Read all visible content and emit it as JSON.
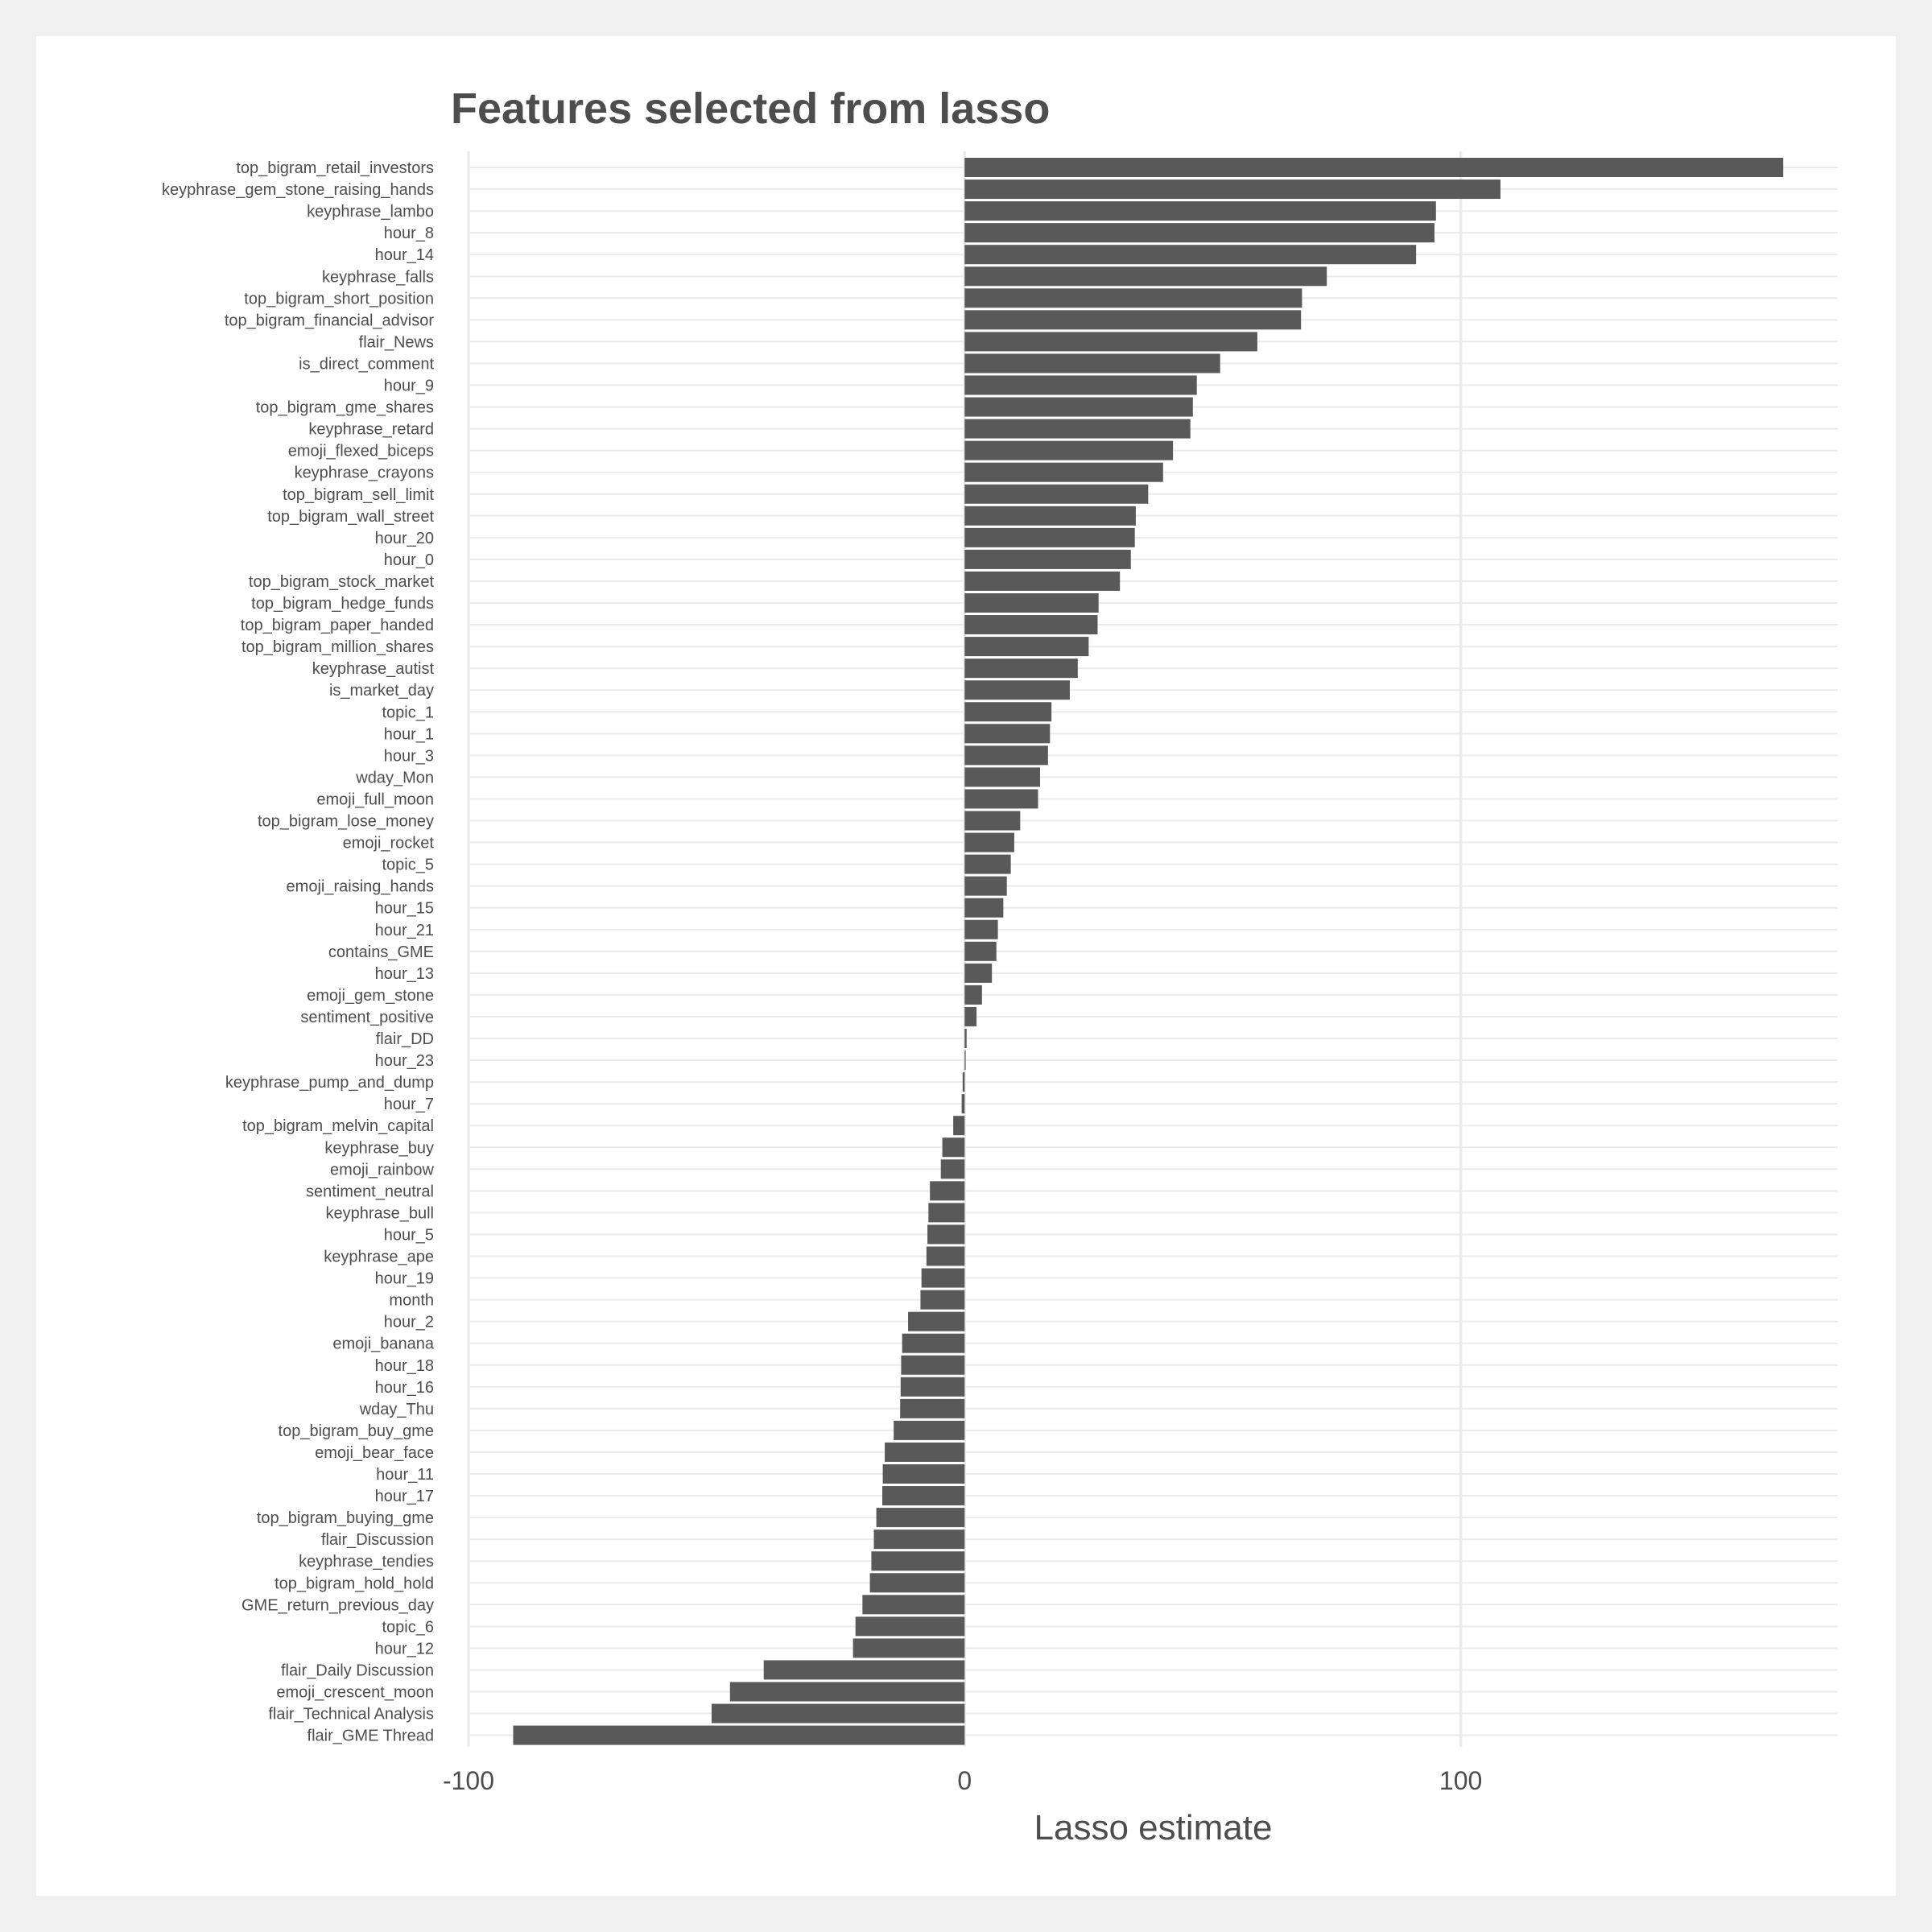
{
  "chart_data": {
    "type": "bar",
    "orientation": "horizontal",
    "title": "Features selected from lasso",
    "xlabel": "Lasso estimate",
    "ylabel": "",
    "xlim": [
      -100,
      176
    ],
    "xticks": [
      -100,
      0,
      100
    ],
    "xtick_labels": [
      "-100",
      "0",
      "100"
    ],
    "grid": true,
    "legend": "none",
    "bar_color": "#595959",
    "grid_color": "#ebebeb",
    "categories": [
      "top_bigram_retail_investors",
      "keyphrase_gem_stone_raising_hands",
      "keyphrase_lambo",
      "hour_8",
      "hour_14",
      "keyphrase_falls",
      "top_bigram_short_position",
      "top_bigram_financial_advisor",
      "flair_News",
      "is_direct_comment",
      "hour_9",
      "top_bigram_gme_shares",
      "keyphrase_retard",
      "emoji_flexed_biceps",
      "keyphrase_crayons",
      "top_bigram_sell_limit",
      "top_bigram_wall_street",
      "hour_20",
      "hour_0",
      "top_bigram_stock_market",
      "top_bigram_hedge_funds",
      "top_bigram_paper_handed",
      "top_bigram_million_shares",
      "keyphrase_autist",
      "is_market_day",
      "topic_1",
      "hour_1",
      "hour_3",
      "wday_Mon",
      "emoji_full_moon",
      "top_bigram_lose_money",
      "emoji_rocket",
      "topic_5",
      "emoji_raising_hands",
      "hour_15",
      "hour_21",
      "contains_GME",
      "hour_13",
      "emoji_gem_stone",
      "sentiment_positive",
      "flair_DD",
      "hour_23",
      "keyphrase_pump_and_dump",
      "hour_7",
      "top_bigram_melvin_capital",
      "keyphrase_buy",
      "emoji_rainbow",
      "sentiment_neutral",
      "keyphrase_bull",
      "hour_5",
      "keyphrase_ape",
      "hour_19",
      "month",
      "hour_2",
      "emoji_banana",
      "hour_18",
      "hour_16",
      "wday_Thu",
      "top_bigram_buy_gme",
      "emoji_bear_face",
      "hour_11",
      "hour_17",
      "top_bigram_buying_gme",
      "flair_Discussion",
      "keyphrase_tendies",
      "top_bigram_hold_hold",
      "GME_return_previous_day",
      "topic_6",
      "hour_12",
      "flair_Daily Discussion",
      "emoji_crescent_moon",
      "flair_Technical Analysis",
      "flair_GME Thread"
    ],
    "values": [
      165,
      108,
      95,
      94.7,
      91,
      73,
      68,
      67.8,
      59,
      51.5,
      46.8,
      46,
      45.5,
      42,
      40,
      37,
      34.5,
      34.3,
      33.5,
      31.3,
      27,
      26.8,
      25,
      22.8,
      21.2,
      17.5,
      17.2,
      16.8,
      15.2,
      14.8,
      11.2,
      10,
      9.3,
      8.5,
      7.8,
      6.7,
      6.4,
      5.5,
      3.5,
      2.4,
      0.4,
      0.2,
      -0.4,
      -0.6,
      -2.3,
      -4.5,
      -4.8,
      -7,
      -7.3,
      -7.5,
      -7.7,
      -8.7,
      -8.9,
      -11.4,
      -12.6,
      -12.8,
      -12.9,
      -13,
      -14.3,
      -16.1,
      -16.5,
      -16.6,
      -17.8,
      -18.3,
      -18.8,
      -19.1,
      -20.6,
      -22,
      -22.5,
      -40.5,
      -47.3,
      -51,
      -91
    ]
  }
}
